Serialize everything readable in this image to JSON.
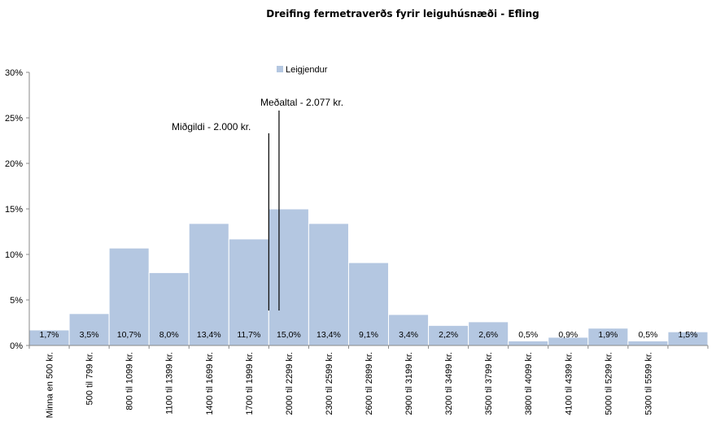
{
  "chart_data": {
    "type": "bar",
    "title": "Dreifing fermetraverðs fyrir leiguhúsnæði - Efling",
    "xlabel": "",
    "ylabel": "",
    "ylim": [
      0,
      30
    ],
    "yticks": [
      "0%",
      "5%",
      "10%",
      "15%",
      "20%",
      "25%",
      "30%"
    ],
    "grid": false,
    "legend_position": "top-center",
    "bar_color": "#b4c7e1",
    "categories": [
      "Minna en 500 kr.",
      "500 til 799 kr.",
      "800 til 1099 kr.",
      "1100 til 1399 kr.",
      "1400 til 1699 kr.",
      "1700 til 1999 kr.",
      "2000 til 2299 kr.",
      "2300 til 2599 kr.",
      "2600 til 2899 kr.",
      "2900 til 3199 kr.",
      "3200 til 3499 kr.",
      "3500 til 3799 kr.",
      "3800 til 4099 kr.",
      "4100 til 4399 kr.",
      "5000 til 5299 kr.",
      "5300 til 5599 kr.",
      ""
    ],
    "series": [
      {
        "name": "Leigjendur",
        "values": [
          1.7,
          3.5,
          10.7,
          8.0,
          13.4,
          11.7,
          15.0,
          13.4,
          9.1,
          3.4,
          2.2,
          2.6,
          0.5,
          0.9,
          1.9,
          0.5,
          1.5
        ],
        "labels": [
          "1,7%",
          "3,5%",
          "10,7%",
          "8,0%",
          "13,4%",
          "11,7%",
          "15,0%",
          "13,4%",
          "9,1%",
          "3,4%",
          "2,2%",
          "2,6%",
          "0,5%",
          "0,9%",
          "1,9%",
          "0,5%",
          "1,5%"
        ]
      }
    ],
    "annotations": [
      {
        "text": "Miðgildi - 2.000 kr.",
        "x_value": 2000,
        "y_top": 23.3
      },
      {
        "text": "Meðaltal - 2.077 kr.",
        "x_value": 2077,
        "y_top": 25.8
      }
    ]
  }
}
